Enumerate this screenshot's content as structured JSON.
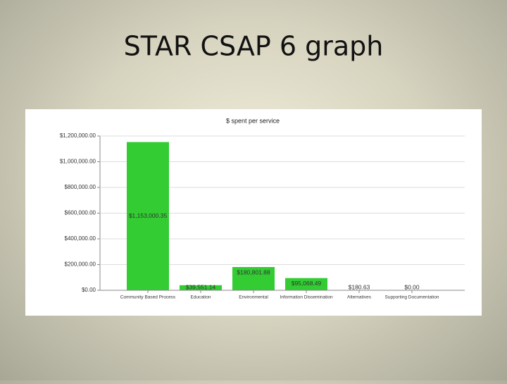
{
  "slide_title": "STAR CSAP 6 graph",
  "chart_data": {
    "type": "bar",
    "title": "$ spent per service",
    "categories": [
      "Community Based Process",
      "Education",
      "Environmental",
      "Information Dissemination",
      "Alternatives",
      "Supporting Documentation"
    ],
    "values": [
      1153000.35,
      39551.14,
      180801.88,
      95068.49,
      180.63,
      0
    ],
    "value_labels": [
      "$1,153,000.35",
      "$39,551.14",
      "$180,801.88",
      "$95,068.49",
      "$180.63",
      "$0.00"
    ],
    "color": "#33cc33",
    "ylim": [
      0,
      1200000
    ],
    "yticks": [
      {
        "value": 0,
        "label": "$0.00"
      },
      {
        "value": 200000,
        "label": "$200,000.00"
      },
      {
        "value": 400000,
        "label": "$400,000.00"
      },
      {
        "value": 600000,
        "label": "$600,000.00"
      },
      {
        "value": 800000,
        "label": "$800,000.00"
      },
      {
        "value": 1000000,
        "label": "$1,000,000.00"
      },
      {
        "value": 1200000,
        "label": "$1,200,000.00"
      }
    ],
    "grid": true
  }
}
